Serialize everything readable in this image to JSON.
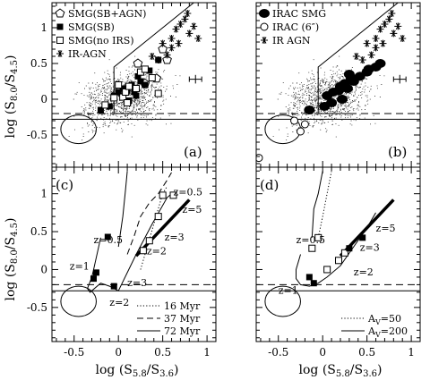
{
  "figure": {
    "ylabel": "log (S8.0/S4.5)",
    "xlabel": "log (S5.8/S3.6)",
    "xticks": [
      "-0.5",
      "0",
      "0.5",
      "1"
    ],
    "yticks": [
      "-0.5",
      "0",
      "0.5",
      "1"
    ]
  },
  "chart_data": [
    {
      "panel": "(a)",
      "type": "scatter",
      "xlim": [
        -0.75,
        1.1
      ],
      "ylim": [
        -0.95,
        1.35
      ],
      "legend_placement": "top-left",
      "legend": [
        {
          "symbol": "open-pentagon",
          "label": "SMG(SB+AGN)"
        },
        {
          "symbol": "filled-square",
          "label": "SMG(SB)"
        },
        {
          "symbol": "open-square",
          "label": "SMG(no IRS)"
        },
        {
          "symbol": "asterisk",
          "label": "IR-AGN"
        }
      ],
      "series": [
        {
          "name": "SMG(SB+AGN)",
          "marker": "open-pentagon",
          "x": [
            0.22,
            0.3,
            0.43,
            0.5,
            0.55
          ],
          "y": [
            0.5,
            0.22,
            0.29,
            0.7,
            0.55
          ]
        },
        {
          "name": "SMG(SB)",
          "marker": "filled-square",
          "x": [
            -0.1,
            -0.05,
            0.0,
            0.05,
            0.1,
            0.15,
            0.18,
            0.22,
            0.25,
            0.3,
            0.35,
            0.2,
            0.12,
            0.45,
            -0.2
          ],
          "y": [
            -0.1,
            0.05,
            0.1,
            0.15,
            0.12,
            0.2,
            0.1,
            0.32,
            0.25,
            0.2,
            0.4,
            0.05,
            -0.02,
            0.55,
            -0.15
          ]
        },
        {
          "name": "SMG(no IRS)",
          "marker": "open-square",
          "x": [
            -0.15,
            -0.05,
            0.05,
            0.08,
            0.12,
            0.2,
            0.25,
            0.3,
            0.38,
            0.45,
            0.1,
            0.0
          ],
          "y": [
            -0.08,
            0.02,
            0.03,
            0.1,
            0.18,
            0.15,
            0.38,
            0.42,
            0.3,
            0.08,
            -0.05,
            0.2
          ]
        },
        {
          "name": "IR-AGN",
          "marker": "asterisk",
          "x": [
            0.55,
            0.6,
            0.65,
            0.7,
            0.75,
            0.78,
            0.8,
            0.85,
            0.5,
            0.45,
            0.38,
            0.9,
            0.68,
            0.6
          ],
          "y": [
            0.62,
            0.85,
            0.98,
            1.05,
            1.12,
            1.2,
            0.92,
            1.02,
            0.78,
            0.55,
            0.6,
            0.85,
            0.78,
            0.72
          ]
        }
      ],
      "wedge": {
        "x": [
          0.35,
          -0.05,
          -0.05,
          0.15,
          0.85
        ],
        "y": [
          -0.2,
          -0.2,
          0.45,
          0.65,
          1.35
        ]
      },
      "circle": {
        "cx": -0.45,
        "cy": -0.42,
        "r": 0.2
      },
      "dashed_y": -0.2,
      "solid_y": -0.28,
      "error_bar": {
        "x": 0.87,
        "y": 0.28,
        "dx": 0.07,
        "dy": 0.06
      }
    },
    {
      "panel": "(b)",
      "type": "scatter",
      "xlim": [
        -0.75,
        1.1
      ],
      "ylim": [
        -0.95,
        1.35
      ],
      "legend_placement": "top-left",
      "legend": [
        {
          "symbol": "filled-circle",
          "label": "IRAC SMG"
        },
        {
          "symbol": "open-circle",
          "label": "IRAC (6″)"
        },
        {
          "symbol": "asterisk",
          "label": "IR AGN"
        }
      ],
      "series": [
        {
          "name": "IRAC SMG",
          "marker": "filled-circle",
          "x": [
            0.05,
            0.12,
            0.18,
            0.2,
            0.25,
            0.28,
            0.32,
            0.35,
            0.3,
            0.42,
            0.5,
            0.52,
            0.6,
            0.65,
            0.1,
            -0.15,
            0.02,
            0.22
          ],
          "y": [
            0.05,
            0.1,
            0.12,
            0.18,
            0.22,
            0.15,
            0.3,
            0.25,
            0.35,
            0.32,
            0.38,
            0.42,
            0.45,
            0.5,
            -0.05,
            -0.15,
            -0.1,
            0.0
          ]
        },
        {
          "name": "IRAC (6″)",
          "marker": "open-circle",
          "x": [
            -0.72,
            -0.25,
            -0.2,
            -0.32
          ],
          "y": [
            -0.82,
            -0.45,
            -0.35,
            -0.3
          ]
        },
        {
          "name": "IR AGN",
          "marker": "asterisk",
          "x": [
            0.55,
            0.6,
            0.65,
            0.7,
            0.75,
            0.78,
            0.8,
            0.85,
            0.5,
            0.45,
            0.38,
            0.9,
            0.68,
            0.6
          ],
          "y": [
            0.62,
            0.85,
            0.98,
            1.05,
            1.12,
            1.2,
            0.92,
            1.02,
            0.78,
            0.55,
            0.6,
            0.85,
            0.78,
            0.72
          ]
        }
      ],
      "wedge": {
        "x": [
          0.35,
          -0.05,
          -0.05,
          0.15,
          0.85
        ],
        "y": [
          -0.2,
          -0.2,
          0.45,
          0.65,
          1.35
        ]
      },
      "circle": {
        "cx": -0.45,
        "cy": -0.42,
        "r": 0.2
      },
      "dashed_y": -0.2,
      "solid_y": -0.28,
      "error_bar": {
        "x": 0.87,
        "y": 0.28,
        "dx": 0.07,
        "dy": 0.06
      }
    },
    {
      "panel": "(c)",
      "type": "line",
      "xlim": [
        -0.75,
        1.1
      ],
      "ylim": [
        -0.95,
        1.35
      ],
      "legend_placement": "bottom-right",
      "legend": [
        {
          "style": "dotted",
          "label": "16 Myr"
        },
        {
          "style": "dashed",
          "label": "37 Myr"
        },
        {
          "style": "solid",
          "label": "72 Myr"
        }
      ],
      "series": [
        {
          "name": "16 Myr",
          "style": "dotted",
          "x": [
            0.25,
            0.35,
            0.45,
            0.5,
            0.55
          ],
          "y": [
            0.0,
            0.4,
            0.8,
            1.0,
            1.1
          ]
        },
        {
          "name": "37 Myr",
          "style": "dashed",
          "x": [
            0.1,
            0.18,
            0.25,
            0.35,
            0.45,
            0.55,
            0.6
          ],
          "y": [
            0.2,
            0.45,
            0.7,
            0.88,
            1.0,
            1.18,
            1.28
          ]
        },
        {
          "name": "72 Myr",
          "style": "solid",
          "x": [
            0.0,
            0.05,
            0.08,
            0.1
          ],
          "y": [
            0.3,
            0.7,
            1.05,
            1.3
          ]
        }
      ],
      "track": {
        "x": [
          -0.2,
          -0.28,
          -0.3,
          -0.35,
          -0.32,
          -0.2,
          -0.1,
          0.0,
          0.2,
          0.38,
          0.55,
          0.6
        ],
        "y": [
          0.42,
          0.0,
          -0.1,
          -0.25,
          -0.3,
          -0.18,
          -0.22,
          -0.28,
          0.2,
          0.6,
          0.95,
          1.0
        ]
      },
      "markers": [
        {
          "marker": "filled-square",
          "x": -0.12,
          "y": 0.43
        },
        {
          "marker": "filled-square",
          "x": -0.25,
          "y": -0.04
        },
        {
          "marker": "filled-square",
          "x": -0.28,
          "y": -0.12
        },
        {
          "marker": "filled-square",
          "x": -0.05,
          "y": -0.22
        },
        {
          "marker": "open-square",
          "x": 0.28,
          "y": 0.25
        },
        {
          "marker": "open-square",
          "x": 0.35,
          "y": 0.38
        },
        {
          "marker": "open-square",
          "x": 0.5,
          "y": 0.98
        },
        {
          "marker": "open-square",
          "x": 0.62,
          "y": 0.98
        },
        {
          "marker": "open-square",
          "x": 0.45,
          "y": 0.7
        }
      ],
      "thick_line": {
        "x": [
          0.2,
          0.8
        ],
        "y": [
          0.18,
          0.92
        ]
      },
      "annotations": [
        {
          "text": "z=0.5",
          "x": -0.28,
          "y": 0.35
        },
        {
          "text": "z=0.5",
          "x": 0.62,
          "y": 0.98
        },
        {
          "text": "z=5",
          "x": 0.72,
          "y": 0.75
        },
        {
          "text": "z=3",
          "x": 0.52,
          "y": 0.38
        },
        {
          "text": "z=2",
          "x": 0.32,
          "y": 0.2
        },
        {
          "text": "z=3",
          "x": 0.1,
          "y": -0.22
        },
        {
          "text": "z=1",
          "x": -0.55,
          "y": 0.0
        },
        {
          "text": "z=2",
          "x": -0.1,
          "y": -0.48
        }
      ],
      "circle": {
        "cx": -0.45,
        "cy": -0.42,
        "r": 0.2
      },
      "dashed_y": -0.2,
      "solid_y": -0.28
    },
    {
      "panel": "(d)",
      "type": "line",
      "xlim": [
        -0.75,
        1.1
      ],
      "ylim": [
        -0.95,
        1.35
      ],
      "legend_placement": "bottom-right",
      "legend": [
        {
          "style": "dotted",
          "label": "AV=50"
        },
        {
          "style": "solid",
          "label": "AV=200"
        }
      ],
      "series": [
        {
          "name": "AV=50",
          "style": "dotted",
          "x": [
            -0.05,
            0.0,
            0.05,
            0.1
          ],
          "y": [
            0.42,
            0.7,
            1.0,
            1.3
          ]
        },
        {
          "name": "AV=200",
          "style": "solid",
          "x": [
            -0.12,
            -0.1,
            -0.05,
            0.0
          ],
          "y": [
            0.42,
            0.8,
            1.0,
            1.3
          ]
        }
      ],
      "track": {
        "x": [
          -0.25,
          -0.3,
          -0.3,
          -0.25,
          -0.15,
          -0.05,
          0.05,
          0.2,
          0.35,
          0.5,
          0.6
        ],
        "y": [
          0.2,
          0.0,
          -0.12,
          -0.2,
          -0.22,
          -0.18,
          -0.1,
          0.05,
          0.3,
          0.55,
          0.75
        ]
      },
      "markers": [
        {
          "marker": "open-square",
          "x": -0.05,
          "y": 0.42
        },
        {
          "marker": "open-square",
          "x": -0.12,
          "y": 0.28
        },
        {
          "marker": "filled-square",
          "x": -0.15,
          "y": -0.1
        },
        {
          "marker": "filled-square",
          "x": -0.1,
          "y": -0.18
        },
        {
          "marker": "open-square",
          "x": 0.05,
          "y": 0.0
        },
        {
          "marker": "open-square",
          "x": 0.18,
          "y": 0.12
        },
        {
          "marker": "open-square",
          "x": 0.25,
          "y": 0.22
        },
        {
          "marker": "filled-square",
          "x": 0.3,
          "y": 0.28
        },
        {
          "marker": "filled-square",
          "x": 0.45,
          "y": 0.42
        }
      ],
      "thick_line": {
        "x": [
          0.2,
          0.8
        ],
        "y": [
          0.18,
          0.92
        ]
      },
      "annotations": [
        {
          "text": "z=0.5",
          "x": -0.3,
          "y": 0.35
        },
        {
          "text": "z=5",
          "x": 0.6,
          "y": 0.5
        },
        {
          "text": "z=3",
          "x": 0.42,
          "y": 0.25
        },
        {
          "text": "z=2",
          "x": 0.35,
          "y": -0.08
        },
        {
          "text": "z=1",
          "x": -0.5,
          "y": -0.32
        }
      ],
      "circle": {
        "cx": -0.45,
        "cy": -0.42,
        "r": 0.2
      },
      "dashed_y": -0.2,
      "solid_y": -0.28
    }
  ]
}
